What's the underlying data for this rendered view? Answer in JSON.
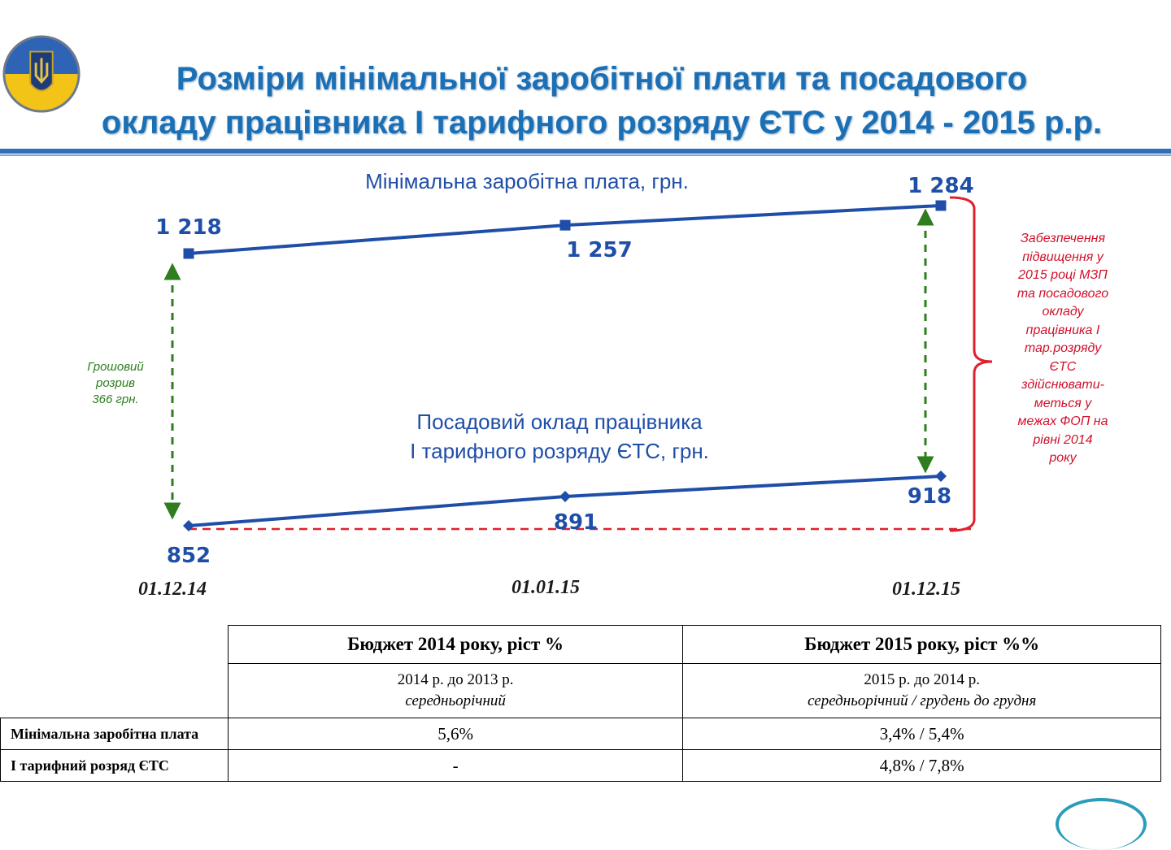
{
  "title": {
    "line1": "Розміри мінімальної заробітної плати та посадового",
    "line2": "окладу працівника І тарифного розряду ЄТС у 2014 - 2015 р.р."
  },
  "colors": {
    "title": "#1b6fb5",
    "series": "#1f4ea8",
    "gap_arrow": "#2e7d1f",
    "note": "#d0112b",
    "ref_line": "#e0202e"
  },
  "chart_data": {
    "type": "line",
    "x": [
      "01.12.14",
      "01.01.15",
      "01.12.15"
    ],
    "series": [
      {
        "name": "Мінімальна заробітна плата, грн.",
        "values": [
          1218,
          1257,
          1284
        ],
        "labels": [
          "1 218",
          "1 257",
          "1 284"
        ],
        "marker": "square"
      },
      {
        "name": "Посадовий оклад працівника І тарифного розряду ЄТС, грн.",
        "values": [
          852,
          891,
          918
        ],
        "labels": [
          "852",
          "891",
          "918"
        ],
        "marker": "diamond"
      }
    ],
    "series2_name_lines": [
      "Посадовий оклад працівника",
      "І тарифного розряду ЄТС, грн."
    ],
    "reference_line": {
      "value": 852,
      "style": "dashed"
    },
    "gap_annotation": [
      "Грошовий",
      "розрив",
      "366 грн."
    ],
    "side_note": [
      "Забезпечення",
      "підвищення у",
      "2015 році МЗП",
      "та посадового",
      "окладу",
      "працівника І",
      "тар.розряду",
      "ЄТС",
      "здійснювати-",
      "меться у",
      "межах ФОП на",
      "рівні 2014",
      "року"
    ]
  },
  "table": {
    "headers": [
      "Бюджет 2014 року, ріст %",
      "Бюджет 2015 року, ріст %%"
    ],
    "sub": [
      {
        "line1": "2014 р. до 2013 р.",
        "line2": "середньорічний"
      },
      {
        "line1": "2015 р. до 2014 р.",
        "line2": "середньорічний / грудень до грудня"
      }
    ],
    "rows": [
      {
        "label": "Мінімальна заробітна плата",
        "v1": "5,6%",
        "v2": "3,4% / 5,4%"
      },
      {
        "label": "І тарифний розряд ЄТС",
        "v1": "-",
        "v2": "4,8% / 7,8%"
      }
    ]
  }
}
